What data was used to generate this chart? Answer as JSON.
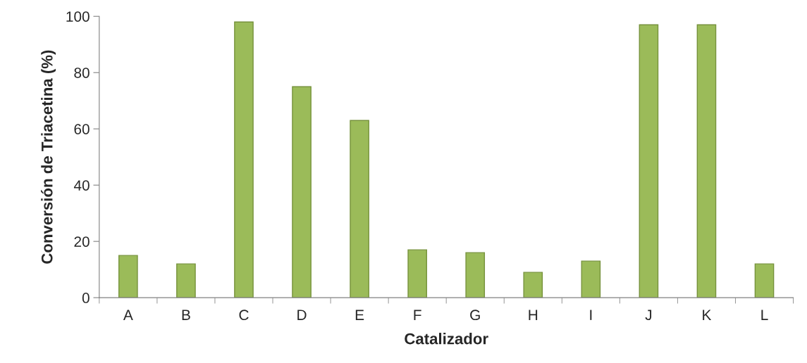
{
  "chart_data": {
    "type": "bar",
    "xlabel": "Catalizador",
    "ylabel": "Conversión de Triacetina (%)",
    "categories": [
      "A",
      "B",
      "C",
      "D",
      "E",
      "F",
      "G",
      "H",
      "I",
      "J",
      "K",
      "L"
    ],
    "values": [
      15,
      12,
      98,
      75,
      63,
      17,
      16,
      9,
      13,
      97,
      97,
      12
    ],
    "color": "#9bbb59",
    "ylim": [
      0,
      100
    ],
    "yticks": [
      0,
      20,
      40,
      60,
      80,
      100
    ],
    "grid": false
  }
}
